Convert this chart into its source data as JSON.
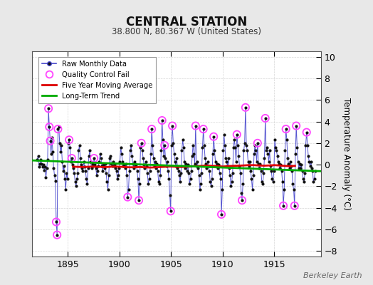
{
  "title": "CENTRAL STATION",
  "subtitle": "38.800 N, 80.367 W (United States)",
  "ylabel": "Temperature Anomaly (°C)",
  "attribution": "Berkeley Earth",
  "xlim": [
    1891.5,
    1919.5
  ],
  "ylim": [
    -8.5,
    10.5
  ],
  "yticks": [
    -8,
    -6,
    -4,
    -2,
    0,
    2,
    4,
    6,
    8,
    10
  ],
  "xticks": [
    1895,
    1900,
    1905,
    1910,
    1915
  ],
  "bg_color": "#e8e8e8",
  "plot_bg_color": "#ffffff",
  "raw_color": "#4444cc",
  "raw_marker_color": "#111111",
  "qc_color": "#ff44ff",
  "moving_avg_color": "#dd0000",
  "trend_color": "#00aa00",
  "raw_monthly": [
    [
      1892.042,
      0.5
    ],
    [
      1892.125,
      0.8
    ],
    [
      1892.208,
      -0.2
    ],
    [
      1892.292,
      0.1
    ],
    [
      1892.375,
      0.5
    ],
    [
      1892.458,
      0.1
    ],
    [
      1892.542,
      -0.2
    ],
    [
      1892.625,
      0.0
    ],
    [
      1892.708,
      -0.5
    ],
    [
      1892.792,
      -0.2
    ],
    [
      1892.875,
      -1.2
    ],
    [
      1892.958,
      -0.3
    ],
    [
      1893.042,
      0.5
    ],
    [
      1893.125,
      5.2
    ],
    [
      1893.208,
      3.5
    ],
    [
      1893.292,
      2.2
    ],
    [
      1893.375,
      1.0
    ],
    [
      1893.458,
      2.5
    ],
    [
      1893.542,
      1.2
    ],
    [
      1893.625,
      -0.3
    ],
    [
      1893.708,
      -1.0
    ],
    [
      1893.792,
      -1.5
    ],
    [
      1893.875,
      -5.3
    ],
    [
      1893.958,
      -6.5
    ],
    [
      1894.042,
      3.3
    ],
    [
      1894.125,
      3.5
    ],
    [
      1894.208,
      2.0
    ],
    [
      1894.292,
      1.2
    ],
    [
      1894.375,
      1.8
    ],
    [
      1894.458,
      0.3
    ],
    [
      1894.542,
      -0.6
    ],
    [
      1894.625,
      -0.1
    ],
    [
      1894.708,
      -1.3
    ],
    [
      1894.792,
      -2.3
    ],
    [
      1894.875,
      -0.8
    ],
    [
      1894.958,
      -1.3
    ],
    [
      1895.042,
      2.0
    ],
    [
      1895.125,
      2.3
    ],
    [
      1895.208,
      1.6
    ],
    [
      1895.292,
      0.3
    ],
    [
      1895.375,
      0.6
    ],
    [
      1895.458,
      0.0
    ],
    [
      1895.542,
      -0.3
    ],
    [
      1895.625,
      -0.8
    ],
    [
      1895.708,
      -1.6
    ],
    [
      1895.792,
      -2.0
    ],
    [
      1895.875,
      -1.3
    ],
    [
      1895.958,
      -0.8
    ],
    [
      1896.042,
      1.3
    ],
    [
      1896.125,
      1.8
    ],
    [
      1896.208,
      0.6
    ],
    [
      1896.292,
      0.0
    ],
    [
      1896.375,
      -0.3
    ],
    [
      1896.458,
      -0.6
    ],
    [
      1896.542,
      0.3
    ],
    [
      1896.625,
      -0.2
    ],
    [
      1896.708,
      -0.6
    ],
    [
      1896.792,
      -1.3
    ],
    [
      1896.875,
      -1.8
    ],
    [
      1896.958,
      -0.3
    ],
    [
      1897.042,
      0.8
    ],
    [
      1897.125,
      1.3
    ],
    [
      1897.208,
      0.3
    ],
    [
      1897.292,
      -0.3
    ],
    [
      1897.375,
      0.1
    ],
    [
      1897.458,
      -0.1
    ],
    [
      1897.542,
      0.6
    ],
    [
      1897.625,
      0.0
    ],
    [
      1897.708,
      -0.3
    ],
    [
      1897.792,
      -1.0
    ],
    [
      1897.875,
      -0.6
    ],
    [
      1897.958,
      -0.1
    ],
    [
      1898.042,
      0.3
    ],
    [
      1898.125,
      1.0
    ],
    [
      1898.208,
      0.6
    ],
    [
      1898.292,
      -0.1
    ],
    [
      1898.375,
      -0.6
    ],
    [
      1898.458,
      0.0
    ],
    [
      1898.542,
      -0.3
    ],
    [
      1898.625,
      0.1
    ],
    [
      1898.708,
      -0.8
    ],
    [
      1898.792,
      -1.6
    ],
    [
      1898.875,
      -2.3
    ],
    [
      1898.958,
      -1.0
    ],
    [
      1899.042,
      0.6
    ],
    [
      1899.125,
      0.8
    ],
    [
      1899.208,
      0.1
    ],
    [
      1899.292,
      -0.1
    ],
    [
      1899.375,
      0.3
    ],
    [
      1899.458,
      -0.1
    ],
    [
      1899.542,
      0.0
    ],
    [
      1899.625,
      -0.3
    ],
    [
      1899.708,
      -0.6
    ],
    [
      1899.792,
      -1.3
    ],
    [
      1899.875,
      -1.0
    ],
    [
      1899.958,
      -0.3
    ],
    [
      1900.042,
      0.3
    ],
    [
      1900.125,
      1.6
    ],
    [
      1900.208,
      1.0
    ],
    [
      1900.292,
      0.3
    ],
    [
      1900.375,
      -0.1
    ],
    [
      1900.458,
      0.0
    ],
    [
      1900.542,
      -0.3
    ],
    [
      1900.625,
      0.1
    ],
    [
      1900.708,
      -1.0
    ],
    [
      1900.792,
      -3.0
    ],
    [
      1900.875,
      -2.3
    ],
    [
      1900.958,
      -0.6
    ],
    [
      1901.042,
      1.3
    ],
    [
      1901.125,
      1.8
    ],
    [
      1901.208,
      0.8
    ],
    [
      1901.292,
      0.1
    ],
    [
      1901.375,
      -0.3
    ],
    [
      1901.458,
      0.3
    ],
    [
      1901.542,
      -0.1
    ],
    [
      1901.625,
      0.0
    ],
    [
      1901.708,
      -0.6
    ],
    [
      1901.792,
      -1.3
    ],
    [
      1901.875,
      -3.3
    ],
    [
      1901.958,
      -1.8
    ],
    [
      1902.042,
      1.6
    ],
    [
      1902.125,
      2.0
    ],
    [
      1902.208,
      1.3
    ],
    [
      1902.292,
      0.6
    ],
    [
      1902.375,
      0.0
    ],
    [
      1902.458,
      -0.3
    ],
    [
      1902.542,
      0.3
    ],
    [
      1902.625,
      -0.1
    ],
    [
      1902.708,
      -0.8
    ],
    [
      1902.792,
      -1.8
    ],
    [
      1902.875,
      -1.3
    ],
    [
      1902.958,
      -0.6
    ],
    [
      1903.042,
      1.0
    ],
    [
      1903.125,
      3.3
    ],
    [
      1903.208,
      1.8
    ],
    [
      1903.292,
      0.6
    ],
    [
      1903.375,
      -0.1
    ],
    [
      1903.458,
      0.3
    ],
    [
      1903.542,
      -0.3
    ],
    [
      1903.625,
      0.1
    ],
    [
      1903.708,
      -0.6
    ],
    [
      1903.792,
      -1.6
    ],
    [
      1903.875,
      -1.8
    ],
    [
      1903.958,
      -1.0
    ],
    [
      1904.042,
      1.3
    ],
    [
      1904.125,
      4.1
    ],
    [
      1904.208,
      2.3
    ],
    [
      1904.292,
      0.8
    ],
    [
      1904.375,
      1.8
    ],
    [
      1904.458,
      0.6
    ],
    [
      1904.542,
      -0.1
    ],
    [
      1904.625,
      0.3
    ],
    [
      1904.708,
      -0.6
    ],
    [
      1904.792,
      -1.3
    ],
    [
      1904.875,
      -2.8
    ],
    [
      1904.958,
      -4.3
    ],
    [
      1905.042,
      1.8
    ],
    [
      1905.125,
      3.6
    ],
    [
      1905.208,
      2.0
    ],
    [
      1905.292,
      1.0
    ],
    [
      1905.375,
      0.3
    ],
    [
      1905.458,
      -0.1
    ],
    [
      1905.542,
      0.6
    ],
    [
      1905.625,
      -0.3
    ],
    [
      1905.708,
      -0.6
    ],
    [
      1905.792,
      -1.0
    ],
    [
      1905.875,
      -1.6
    ],
    [
      1905.958,
      -0.8
    ],
    [
      1906.042,
      1.3
    ],
    [
      1906.125,
      2.3
    ],
    [
      1906.208,
      1.6
    ],
    [
      1906.292,
      0.3
    ],
    [
      1906.375,
      -0.3
    ],
    [
      1906.458,
      0.1
    ],
    [
      1906.542,
      -0.6
    ],
    [
      1906.625,
      0.0
    ],
    [
      1906.708,
      -0.8
    ],
    [
      1906.792,
      -1.8
    ],
    [
      1906.875,
      -1.3
    ],
    [
      1906.958,
      -0.6
    ],
    [
      1907.042,
      0.8
    ],
    [
      1907.125,
      1.8
    ],
    [
      1907.208,
      1.0
    ],
    [
      1907.292,
      0.1
    ],
    [
      1907.375,
      3.6
    ],
    [
      1907.458,
      -0.1
    ],
    [
      1907.542,
      0.3
    ],
    [
      1907.625,
      -0.3
    ],
    [
      1907.708,
      -1.0
    ],
    [
      1907.792,
      -2.3
    ],
    [
      1907.875,
      -1.8
    ],
    [
      1907.958,
      -0.8
    ],
    [
      1908.042,
      1.6
    ],
    [
      1908.125,
      3.3
    ],
    [
      1908.208,
      1.8
    ],
    [
      1908.292,
      0.6
    ],
    [
      1908.375,
      0.1
    ],
    [
      1908.458,
      -0.3
    ],
    [
      1908.542,
      0.3
    ],
    [
      1908.625,
      -0.1
    ],
    [
      1908.708,
      -0.6
    ],
    [
      1908.792,
      -1.6
    ],
    [
      1908.875,
      -2.0
    ],
    [
      1908.958,
      -1.3
    ],
    [
      1909.042,
      1.0
    ],
    [
      1909.125,
      2.6
    ],
    [
      1909.208,
      1.3
    ],
    [
      1909.292,
      0.3
    ],
    [
      1909.375,
      -0.1
    ],
    [
      1909.458,
      0.1
    ],
    [
      1909.542,
      -0.3
    ],
    [
      1909.625,
      0.0
    ],
    [
      1909.708,
      -0.8
    ],
    [
      1909.792,
      -1.3
    ],
    [
      1909.875,
      -4.6
    ],
    [
      1909.958,
      -2.3
    ],
    [
      1910.042,
      1.3
    ],
    [
      1910.125,
      2.8
    ],
    [
      1910.208,
      1.8
    ],
    [
      1910.292,
      0.6
    ],
    [
      1910.375,
      0.3
    ],
    [
      1910.458,
      -0.1
    ],
    [
      1910.542,
      0.6
    ],
    [
      1910.625,
      -0.3
    ],
    [
      1910.708,
      -1.0
    ],
    [
      1910.792,
      -2.0
    ],
    [
      1910.875,
      -1.6
    ],
    [
      1910.958,
      -0.8
    ],
    [
      1911.042,
      1.6
    ],
    [
      1911.125,
      2.3
    ],
    [
      1911.208,
      1.6
    ],
    [
      1911.292,
      0.3
    ],
    [
      1911.375,
      2.8
    ],
    [
      1911.458,
      1.8
    ],
    [
      1911.542,
      0.8
    ],
    [
      1911.625,
      -0.1
    ],
    [
      1911.708,
      -0.8
    ],
    [
      1911.792,
      -2.6
    ],
    [
      1911.875,
      -3.3
    ],
    [
      1911.958,
      -1.8
    ],
    [
      1912.042,
      1.3
    ],
    [
      1912.125,
      2.0
    ],
    [
      1912.208,
      5.3
    ],
    [
      1912.292,
      1.8
    ],
    [
      1912.375,
      1.3
    ],
    [
      1912.458,
      0.3
    ],
    [
      1912.542,
      -0.1
    ],
    [
      1912.625,
      0.3
    ],
    [
      1912.708,
      -0.6
    ],
    [
      1912.792,
      -1.3
    ],
    [
      1912.875,
      -2.3
    ],
    [
      1912.958,
      -1.0
    ],
    [
      1913.042,
      1.0
    ],
    [
      1913.125,
      1.8
    ],
    [
      1913.208,
      1.3
    ],
    [
      1913.292,
      0.3
    ],
    [
      1913.375,
      2.0
    ],
    [
      1913.458,
      0.1
    ],
    [
      1913.542,
      -0.3
    ],
    [
      1913.625,
      0.1
    ],
    [
      1913.708,
      -0.6
    ],
    [
      1913.792,
      -1.6
    ],
    [
      1913.875,
      -1.8
    ],
    [
      1913.958,
      -0.8
    ],
    [
      1914.042,
      0.6
    ],
    [
      1914.125,
      4.3
    ],
    [
      1914.208,
      1.3
    ],
    [
      1914.292,
      1.6
    ],
    [
      1914.375,
      1.0
    ],
    [
      1914.458,
      0.3
    ],
    [
      1914.542,
      1.3
    ],
    [
      1914.625,
      -0.1
    ],
    [
      1914.708,
      -0.6
    ],
    [
      1914.792,
      -1.3
    ],
    [
      1914.875,
      -1.6
    ],
    [
      1914.958,
      -0.6
    ],
    [
      1915.042,
      2.3
    ],
    [
      1915.125,
      1.6
    ],
    [
      1915.208,
      1.3
    ],
    [
      1915.292,
      0.8
    ],
    [
      1915.375,
      0.3
    ],
    [
      1915.458,
      0.1
    ],
    [
      1915.542,
      -0.3
    ],
    [
      1915.625,
      0.0
    ],
    [
      1915.708,
      -0.6
    ],
    [
      1915.792,
      -1.6
    ],
    [
      1915.875,
      -3.8
    ],
    [
      1915.958,
      -2.3
    ],
    [
      1916.042,
      1.3
    ],
    [
      1916.125,
      3.3
    ],
    [
      1916.208,
      2.3
    ],
    [
      1916.292,
      0.6
    ],
    [
      1916.375,
      0.1
    ],
    [
      1916.458,
      -0.3
    ],
    [
      1916.542,
      0.3
    ],
    [
      1916.625,
      -0.1
    ],
    [
      1916.708,
      -0.6
    ],
    [
      1916.792,
      -1.8
    ],
    [
      1916.875,
      -2.3
    ],
    [
      1916.958,
      -3.8
    ],
    [
      1917.042,
      1.0
    ],
    [
      1917.125,
      3.6
    ],
    [
      1917.208,
      1.6
    ],
    [
      1917.292,
      0.3
    ],
    [
      1917.375,
      -0.3
    ],
    [
      1917.458,
      0.1
    ],
    [
      1917.542,
      -0.3
    ],
    [
      1917.625,
      0.0
    ],
    [
      1917.708,
      -0.6
    ],
    [
      1917.792,
      -1.3
    ],
    [
      1917.875,
      -1.6
    ],
    [
      1917.958,
      -0.8
    ],
    [
      1918.042,
      1.8
    ],
    [
      1918.125,
      3.0
    ],
    [
      1918.208,
      1.8
    ],
    [
      1918.292,
      0.8
    ],
    [
      1918.375,
      0.3
    ],
    [
      1918.458,
      -0.1
    ],
    [
      1918.542,
      0.3
    ],
    [
      1918.625,
      -0.3
    ],
    [
      1918.708,
      -0.6
    ],
    [
      1918.792,
      -1.6
    ],
    [
      1918.875,
      -1.3
    ],
    [
      1918.958,
      -0.6
    ]
  ],
  "qc_fail": [
    [
      1893.125,
      5.2
    ],
    [
      1893.208,
      3.5
    ],
    [
      1893.292,
      2.2
    ],
    [
      1893.875,
      -5.3
    ],
    [
      1893.958,
      -6.5
    ],
    [
      1894.042,
      3.3
    ],
    [
      1895.125,
      2.3
    ],
    [
      1895.375,
      0.6
    ],
    [
      1897.542,
      0.6
    ],
    [
      1900.792,
      -3.0
    ],
    [
      1901.875,
      -3.3
    ],
    [
      1902.125,
      2.0
    ],
    [
      1903.125,
      3.3
    ],
    [
      1904.125,
      4.1
    ],
    [
      1904.375,
      1.8
    ],
    [
      1904.958,
      -4.3
    ],
    [
      1905.125,
      3.6
    ],
    [
      1907.375,
      3.6
    ],
    [
      1908.125,
      3.3
    ],
    [
      1909.125,
      2.6
    ],
    [
      1909.875,
      -4.6
    ],
    [
      1911.375,
      2.8
    ],
    [
      1911.875,
      -3.3
    ],
    [
      1912.208,
      5.3
    ],
    [
      1913.375,
      2.0
    ],
    [
      1914.125,
      4.3
    ],
    [
      1915.875,
      -3.8
    ],
    [
      1916.125,
      3.3
    ],
    [
      1916.958,
      -3.8
    ],
    [
      1917.125,
      3.6
    ],
    [
      1918.125,
      3.0
    ]
  ],
  "moving_avg": [
    [
      1895.5,
      -0.18
    ],
    [
      1896.0,
      -0.2
    ],
    [
      1896.5,
      -0.21
    ],
    [
      1897.0,
      -0.19
    ],
    [
      1897.5,
      -0.17
    ],
    [
      1898.0,
      -0.19
    ],
    [
      1898.5,
      -0.22
    ],
    [
      1899.0,
      -0.2
    ],
    [
      1899.5,
      -0.17
    ],
    [
      1900.0,
      -0.19
    ],
    [
      1900.5,
      -0.21
    ],
    [
      1901.0,
      -0.24
    ],
    [
      1901.5,
      -0.23
    ],
    [
      1902.0,
      -0.21
    ],
    [
      1902.5,
      -0.24
    ],
    [
      1903.0,
      -0.26
    ],
    [
      1903.5,
      -0.24
    ],
    [
      1904.0,
      -0.21
    ],
    [
      1904.5,
      -0.19
    ],
    [
      1905.0,
      -0.17
    ],
    [
      1905.5,
      -0.19
    ],
    [
      1906.0,
      -0.21
    ],
    [
      1906.5,
      -0.19
    ],
    [
      1907.0,
      -0.17
    ],
    [
      1907.5,
      -0.14
    ],
    [
      1908.0,
      -0.11
    ],
    [
      1908.5,
      -0.09
    ],
    [
      1909.0,
      -0.11
    ],
    [
      1909.5,
      -0.14
    ],
    [
      1910.0,
      -0.17
    ],
    [
      1910.5,
      -0.14
    ],
    [
      1911.0,
      -0.11
    ],
    [
      1911.5,
      -0.09
    ],
    [
      1912.0,
      -0.07
    ],
    [
      1912.5,
      -0.04
    ],
    [
      1913.0,
      -0.04
    ],
    [
      1913.5,
      -0.07
    ],
    [
      1914.0,
      -0.09
    ],
    [
      1914.5,
      -0.07
    ],
    [
      1915.0,
      -0.04
    ],
    [
      1915.5,
      -0.07
    ],
    [
      1916.0,
      -0.11
    ],
    [
      1916.5,
      -0.14
    ],
    [
      1917.0,
      -0.11
    ]
  ],
  "trend_line": [
    [
      1891.5,
      0.4
    ],
    [
      1919.5,
      -0.6
    ]
  ]
}
